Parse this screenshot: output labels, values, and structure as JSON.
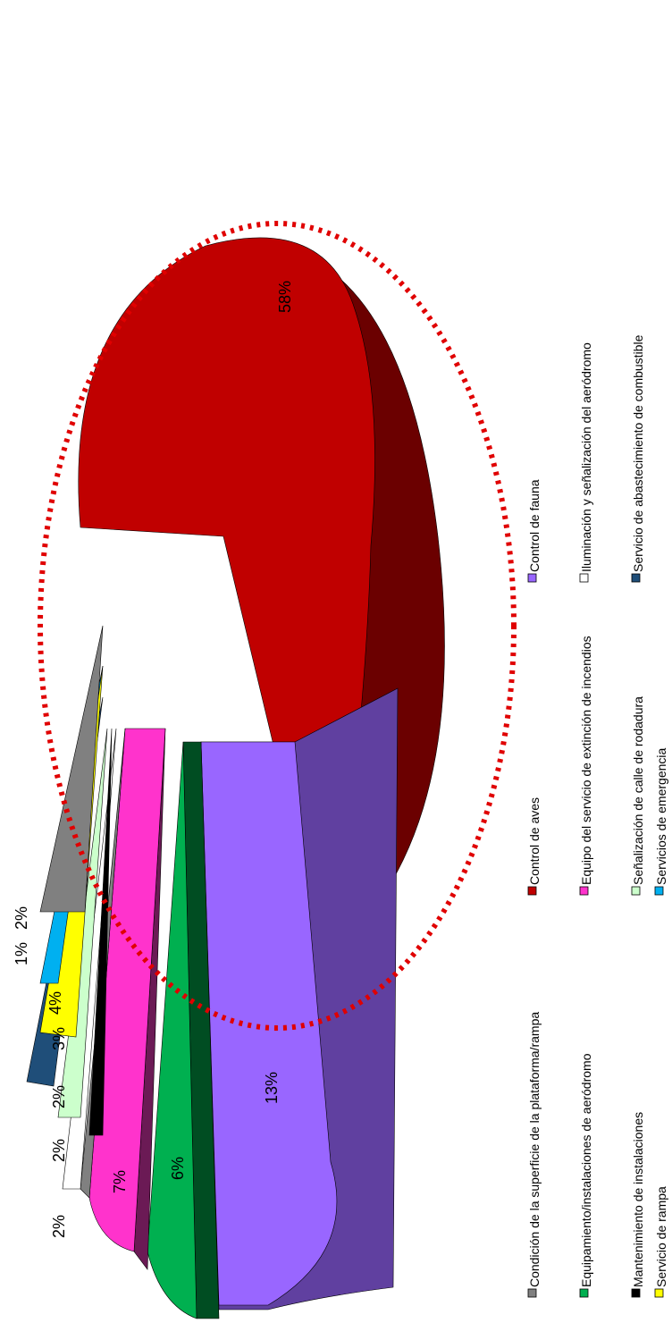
{
  "chart_data": {
    "type": "pie",
    "style": "3d-exploded",
    "rotated": "90deg-counterclockwise",
    "legend_position": "right",
    "annotation": "red dotted ellipse around the 58% slice",
    "slices": [
      {
        "name": "Control de aves",
        "value": 58,
        "label": "58%",
        "color": "#C00000"
      },
      {
        "name": "Control de fauna",
        "value": 13,
        "label": "13%",
        "color": "#9966FF"
      },
      {
        "name": "Condición de la superficie de la plataforma/rampa",
        "value": 0.5,
        "label": "",
        "color": "#7F7F7F"
      },
      {
        "name": "Equipamiento/instalaciones de aeródromo",
        "value": 6,
        "label": "6%",
        "color": "#00B050"
      },
      {
        "name": "Servicio de abastecimiento de combustible",
        "value": 0.5,
        "label": "",
        "color": "#7030A0"
      },
      {
        "name": "Equipo del servicio de extinción de incendios",
        "value": 7,
        "label": "7%",
        "color": "#FF33CC"
      },
      {
        "name": "Condición de la superficie de la plataforma/rampa",
        "value": 2,
        "label": "2%",
        "color": "#808080"
      },
      {
        "name": "Iluminación y señalización del aeródromo",
        "value": 2,
        "label": "2%",
        "color": "#FFFFFF"
      },
      {
        "name": "Mantenimiento de instalaciones",
        "value": 2,
        "label": "2%",
        "color": "#000000"
      },
      {
        "name": "Señalización de calle de rodadura",
        "value": 2,
        "label": "",
        "color": "#CCFFCC"
      },
      {
        "name": "Servicio de abastecimiento de combustible",
        "value": 3,
        "label": "3%",
        "color": "#1F4E79"
      },
      {
        "name": "Servicio de rampa",
        "value": 4,
        "label": "4%",
        "color": "#FFFF00"
      },
      {
        "name": "Servicios de emergencia",
        "value": 1,
        "label": "1%",
        "color": "#00B0F0"
      },
      {
        "name": "Condición de la superficie de la plataforma/rampa",
        "value": 2,
        "label": "2%",
        "color": "#808080"
      }
    ],
    "outer_labels": [
      "2%",
      "2%",
      "2%",
      "3%",
      "1%",
      "2%"
    ],
    "legend": [
      {
        "label": "Condición de la superficie de la plataforma/rampa",
        "color": "#808080"
      },
      {
        "label": "Control de aves",
        "color": "#C00000"
      },
      {
        "label": "Control de fauna",
        "color": "#9966FF"
      },
      {
        "label": "Equipamiento/instalaciones de aeródromo",
        "color": "#00B050"
      },
      {
        "label": "Equipo del servicio de extinción de incendios",
        "color": "#FF33CC"
      },
      {
        "label": "Iluminación y señalización del aeródromo",
        "color": "#FFFFFF"
      },
      {
        "label": "Mantenimiento de instalaciones",
        "color": "#000000"
      },
      {
        "label": "Señalización de calle de rodadura",
        "color": "#CCFFCC"
      },
      {
        "label": "Servicio de abastecimiento de combustible",
        "color": "#1F4E79"
      },
      {
        "label": "Servicio de rampa",
        "color": "#FFFF00"
      },
      {
        "label": "Servicios de emergencia",
        "color": "#00B0F0"
      }
    ]
  }
}
